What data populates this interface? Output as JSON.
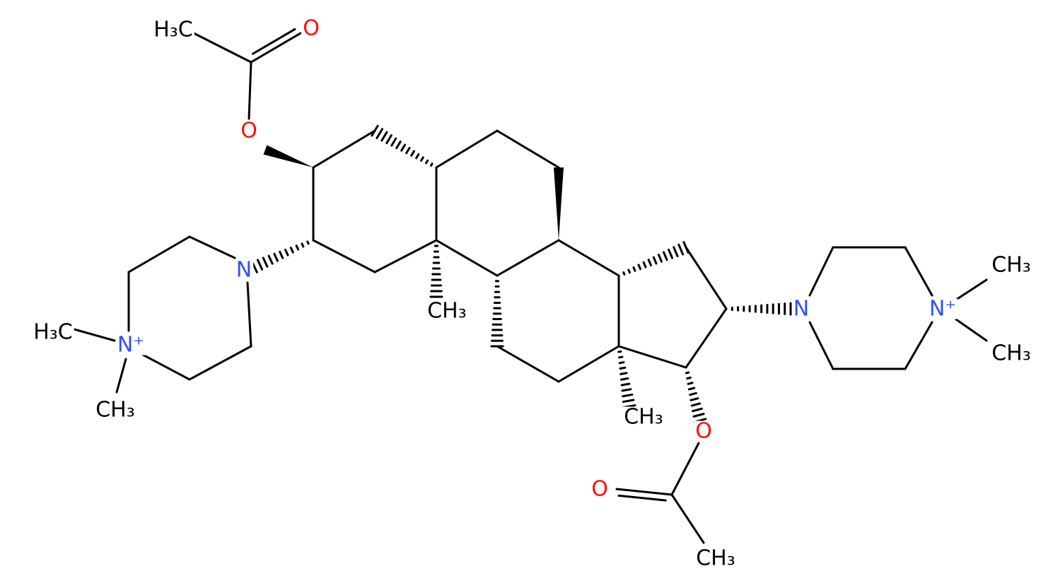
{
  "atom_labels": [
    "H₃C",
    "O",
    "O",
    "N",
    "N⁺",
    "H₃C",
    "CH₃",
    "CH₃",
    "CH₃",
    "O",
    "O",
    "CH₃",
    "N",
    "N⁺",
    "CH₃",
    "CH₃"
  ]
}
